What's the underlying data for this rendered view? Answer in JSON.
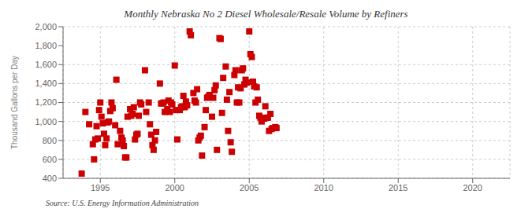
{
  "chart_data": {
    "type": "scatter",
    "title": "Monthly Nebraska No 2 Diesel Wholesale/Resale Volume by Refiners",
    "ylabel": "Thousand Gallons per Day",
    "annotations": [
      "Source: U.S. Energy Information Administration"
    ],
    "color": "#cc0000",
    "marker": "square",
    "grid": true,
    "xlim": [
      1992.5,
      2022.5
    ],
    "ylim": [
      400,
      2000
    ],
    "xticks": [
      1995,
      2000,
      2005,
      2010,
      2015,
      2020
    ],
    "yticks": [
      400,
      600,
      800,
      {
        "value": 1000,
        "label": "1,000"
      },
      {
        "value": 1200,
        "label": "1,200"
      },
      {
        "value": 1400,
        "label": "1,400"
      },
      {
        "value": 1600,
        "label": "1,600"
      },
      {
        "value": 1800,
        "label": "1,800"
      },
      {
        "value": 2000,
        "label": "2,000"
      }
    ],
    "x": [
      1993.75,
      1994.0,
      1994.25,
      1994.5,
      1994.58,
      1994.67,
      1994.75,
      1994.83,
      1994.92,
      1995.0,
      1995.08,
      1995.17,
      1995.25,
      1995.33,
      1995.42,
      1995.5,
      1995.58,
      1995.67,
      1995.75,
      1995.83,
      1996.0,
      1996.08,
      1996.17,
      1996.33,
      1996.42,
      1996.5,
      1996.58,
      1996.67,
      1996.75,
      1996.83,
      1997.0,
      1997.08,
      1997.17,
      1997.25,
      1997.33,
      1997.42,
      1997.5,
      1997.58,
      1997.67,
      1997.75,
      1998.0,
      1998.08,
      1998.25,
      1998.33,
      1998.42,
      1998.5,
      1998.58,
      1998.67,
      1998.75,
      1999.0,
      1999.08,
      1999.17,
      1999.25,
      1999.33,
      1999.5,
      1999.58,
      1999.67,
      1999.75,
      1999.83,
      2000.0,
      2000.08,
      2000.17,
      2000.33,
      2000.42,
      2000.5,
      2000.58,
      2000.67,
      2000.75,
      2000.83,
      2001.0,
      2001.08,
      2001.25,
      2001.33,
      2001.42,
      2001.5,
      2001.58,
      2001.67,
      2001.75,
      2001.83,
      2002.0,
      2002.08,
      2002.17,
      2002.25,
      2002.33,
      2002.5,
      2002.58,
      2002.67,
      2002.75,
      2002.83,
      2003.0,
      2003.08,
      2003.17,
      2003.25,
      2003.42,
      2003.5,
      2003.58,
      2003.67,
      2003.75,
      2003.83,
      2004.0,
      2004.08,
      2004.17,
      2004.25,
      2004.33,
      2004.42,
      2004.5,
      2004.58,
      2004.67,
      2004.75,
      2004.83,
      2005.0,
      2005.08,
      2005.17,
      2005.25,
      2005.33,
      2005.42,
      2005.5,
      2005.58,
      2005.67,
      2005.75,
      2005.83,
      2006.0,
      2006.08,
      2006.17,
      2006.25,
      2006.33,
      2006.42,
      2006.5,
      2006.58,
      2006.75,
      2006.83
    ],
    "values": [
      450,
      1100,
      970,
      760,
      600,
      810,
      950,
      820,
      1120,
      1200,
      1050,
      980,
      870,
      750,
      820,
      990,
      1000,
      1110,
      1200,
      1140,
      960,
      1440,
      760,
      900,
      830,
      800,
      740,
      620,
      620,
      1050,
      1130,
      1060,
      1080,
      1150,
      810,
      860,
      870,
      1060,
      1200,
      1180,
      1540,
      1100,
      1200,
      970,
      860,
      750,
      700,
      800,
      890,
      1400,
      1190,
      1190,
      1200,
      1100,
      1130,
      1220,
      1100,
      1200,
      1180,
      1590,
      1120,
      810,
      1120,
      1150,
      1160,
      1270,
      1150,
      1210,
      1170,
      1950,
      1910,
      1300,
      1220,
      1200,
      1340,
      800,
      830,
      850,
      640,
      940,
      1120,
      1250,
      1260,
      1280,
      1050,
      1250,
      1330,
      1380,
      700,
      1880,
      1870,
      1090,
      1460,
      1580,
      1230,
      900,
      1310,
      780,
      680,
      1490,
      1540,
      1200,
      1360,
      1200,
      1350,
      1540,
      1560,
      1390,
      1440,
      1410,
      1950,
      1710,
      1680,
      1420,
      1370,
      1200,
      1360,
      1230,
      1060,
      1040,
      1000,
      1030,
      1160,
      1040,
      1040,
      900,
      1080,
      920,
      930,
      940,
      930
    ]
  }
}
